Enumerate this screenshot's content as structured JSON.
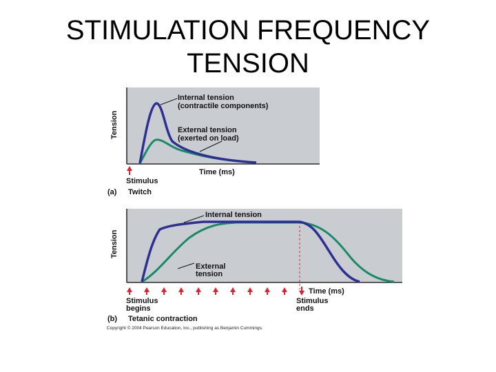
{
  "slide": {
    "title_line1": "STIMULATION FREQUENCY",
    "title_line2": "TENSION"
  },
  "colors": {
    "plot_background": "#c9ccd0",
    "internal_tension": "#2d2f91",
    "external_tension": "#178a6a",
    "stimulus_arrow": "#e0202e"
  },
  "panel_a": {
    "y_label": "Tension",
    "x_label": "Time (ms)",
    "internal_label_1": "Internal tension",
    "internal_label_2": "(contractile components)",
    "external_label_1": "External tension",
    "external_label_2": "(exerted on load)",
    "stimulus_label": "Stimulus",
    "caption_letter": "(a)",
    "caption_text": "Twitch"
  },
  "panel_b": {
    "y_label": "Tension",
    "x_label": "Time (ms)",
    "internal_label": "Internal tension",
    "external_label_1": "External",
    "external_label_2": "tension",
    "stimulus_begins_1": "Stimulus",
    "stimulus_begins_2": "begins",
    "stimulus_ends_1": "Stimulus",
    "stimulus_ends_2": "ends",
    "caption_letter": "(b)",
    "caption_text": "Tetanic contraction",
    "stimulus_arrow_count": 11
  },
  "copyright": "Copyright © 2004 Pearson Education, Inc., publishing as Benjamin Cummings."
}
